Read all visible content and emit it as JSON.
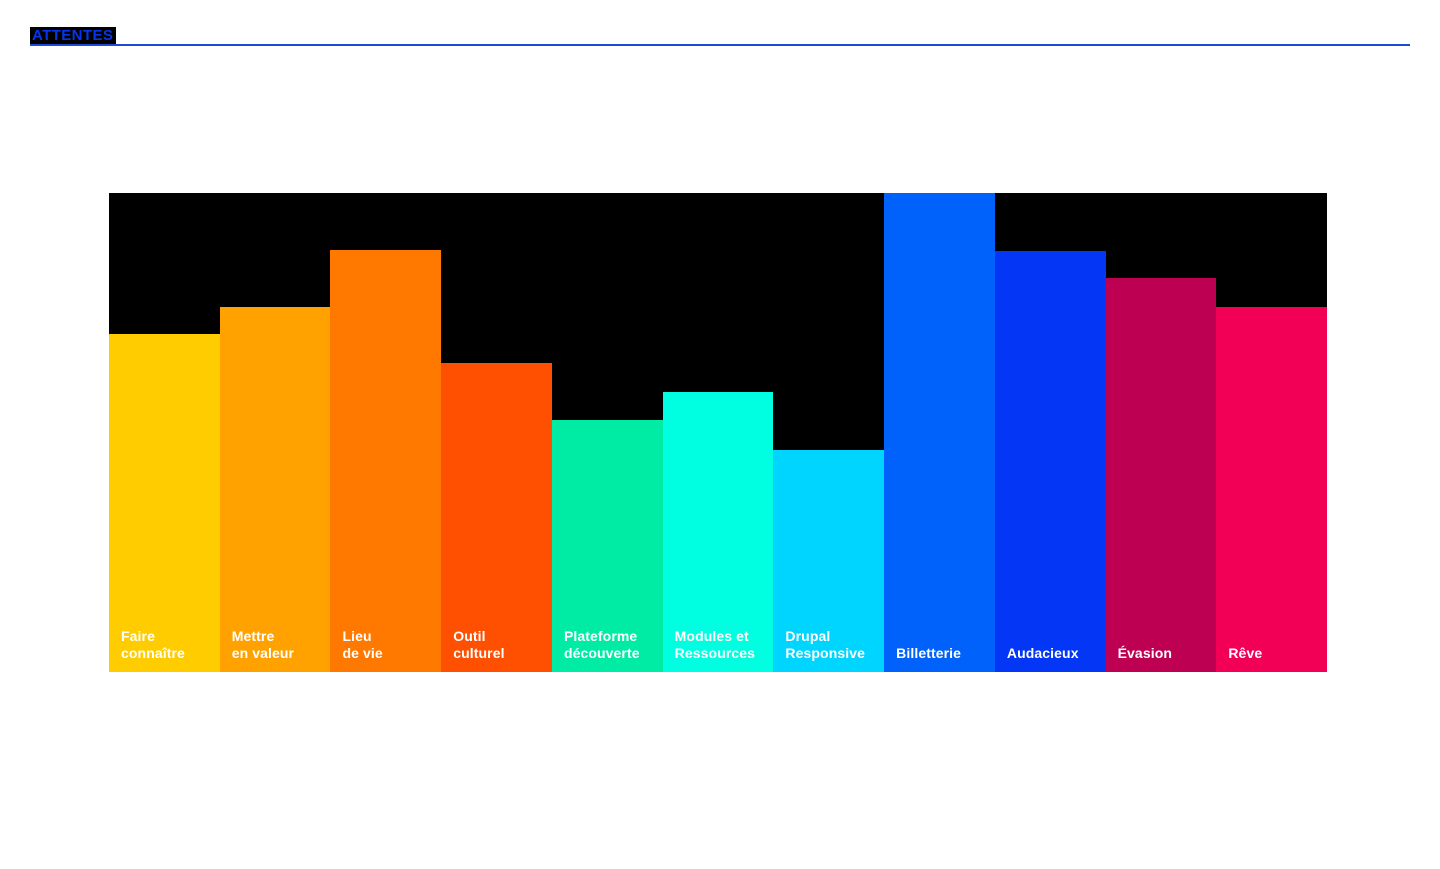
{
  "header": {
    "title": "ATTENTES",
    "title_color": "#0635eb",
    "title_highlight": "#000000",
    "underline_color": "#1e49d3"
  },
  "chart_data": {
    "type": "bar",
    "title": "ATTENTES",
    "orientation": "vertical",
    "background": "#000000",
    "label_color": "#ffffff",
    "legend": "none",
    "axes": "none",
    "value_scale": "relative bar height, percent of tallest bar (Billetterie = 100)",
    "categories": [
      "Faire connaître",
      "Mettre en valeur",
      "Lieu de vie",
      "Outil culturel",
      "Plateforme découverte",
      "Modules et Ressources",
      "Drupal Responsive",
      "Billetterie",
      "Audacieux",
      "Évasion",
      "Rêve"
    ],
    "label_lines": [
      [
        "Faire",
        "connaître"
      ],
      [
        "Mettre",
        "en valeur"
      ],
      [
        "Lieu",
        "de vie"
      ],
      [
        "Outil",
        "culturel"
      ],
      [
        "Plateforme",
        "découverte"
      ],
      [
        "Modules et",
        "Ressources"
      ],
      [
        "Drupal",
        "Responsive"
      ],
      [
        "Billetterie"
      ],
      [
        "Audacieux"
      ],
      [
        "Évasion"
      ],
      [
        "Rêve"
      ]
    ],
    "values": [
      70.6,
      76.2,
      88.1,
      64.5,
      52.6,
      58.5,
      46.3,
      100,
      87.9,
      82.3,
      76.2
    ],
    "colors": [
      "#ffcc00",
      "#ffa200",
      "#ff7900",
      "#ff4f00",
      "#00eba4",
      "#00ffe0",
      "#00d5ff",
      "#0062fa",
      "#0336f5",
      "#be0052",
      "#f10056"
    ]
  }
}
